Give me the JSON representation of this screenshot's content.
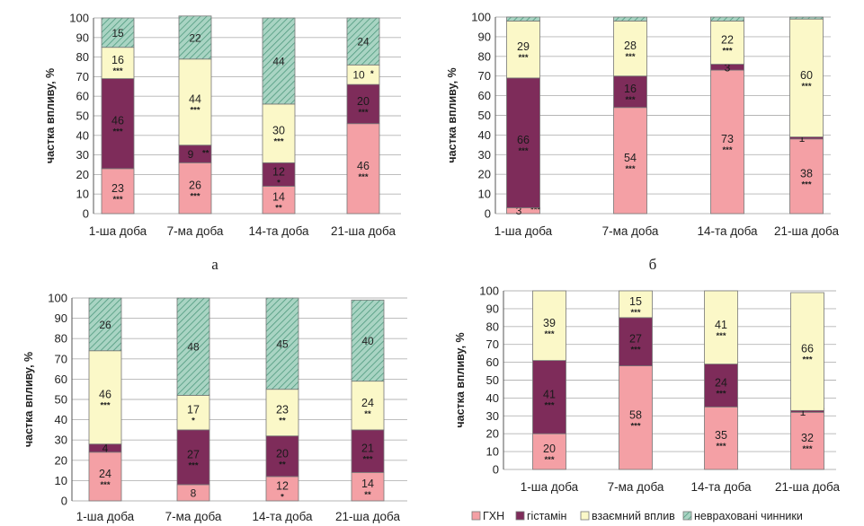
{
  "colors": {
    "ghn": "#f4a0a5",
    "histamine": "#7e2c5a",
    "interaction": "#fbf8c8",
    "unaccounted": "#a9d4c3",
    "bar_outline": "#777777",
    "grid": "#b5b5b5"
  },
  "legend": [
    {
      "key": "ghn",
      "label": "ГХН"
    },
    {
      "key": "histamine",
      "label": "гістамін"
    },
    {
      "key": "interaction",
      "label": "взаємний вплив"
    },
    {
      "key": "unaccounted",
      "label": "невраховані чинники"
    }
  ],
  "chart_data": [
    {
      "type": "bar",
      "stacked": true,
      "panel_label": "а",
      "ylabel": "частка впливу, %",
      "ylim": [
        0,
        100
      ],
      "yticks": [
        0,
        10,
        20,
        30,
        40,
        50,
        60,
        70,
        80,
        90,
        100
      ],
      "categories": [
        "1-ша доба",
        "7-ма доба",
        "14-та доба",
        "21-ша доба"
      ],
      "series": [
        {
          "key": "ghn",
          "values": [
            23,
            26,
            14,
            46
          ],
          "labels": [
            "23",
            "26",
            "14",
            "46"
          ],
          "sig": [
            "***",
            "***",
            "**",
            "***"
          ]
        },
        {
          "key": "histamine",
          "values": [
            46,
            9,
            12,
            20
          ],
          "labels": [
            "46",
            "9",
            "12",
            "20"
          ],
          "sig": [
            "***",
            "**",
            "*",
            "***"
          ]
        },
        {
          "key": "interaction",
          "values": [
            16,
            44,
            30,
            10
          ],
          "labels": [
            "16",
            "44",
            "30",
            "10"
          ],
          "sig": [
            "***",
            "***",
            "***",
            "*"
          ]
        },
        {
          "key": "unaccounted",
          "values": [
            15,
            22,
            44,
            24
          ],
          "labels": [
            "15",
            "22",
            "44",
            "24"
          ],
          "sig": [
            "",
            "",
            "",
            ""
          ]
        }
      ]
    },
    {
      "type": "bar",
      "stacked": true,
      "panel_label": "б",
      "ylabel": "частка впливу, %",
      "ylim": [
        0,
        100
      ],
      "yticks": [
        0,
        10,
        20,
        30,
        40,
        50,
        60,
        70,
        80,
        90,
        100
      ],
      "categories": [
        "1-ша доба",
        "7-ма доба",
        "14-та доба",
        "21-ша доба"
      ],
      "series": [
        {
          "key": "ghn",
          "values": [
            3,
            54,
            73,
            38
          ],
          "labels": [
            "3",
            "54",
            "73",
            "38"
          ],
          "sig": [
            "***",
            "***",
            "***",
            "***"
          ]
        },
        {
          "key": "histamine",
          "values": [
            66,
            16,
            3,
            1
          ],
          "labels": [
            "66",
            "16",
            "3",
            "1"
          ],
          "sig": [
            "***",
            "***",
            "",
            "***"
          ]
        },
        {
          "key": "interaction",
          "values": [
            29,
            28,
            22,
            60
          ],
          "labels": [
            "29",
            "28",
            "22",
            "60"
          ],
          "sig": [
            "***",
            "***",
            "***",
            "***"
          ]
        },
        {
          "key": "unaccounted",
          "values": [
            2,
            2,
            2,
            1
          ],
          "labels": [
            "",
            "",
            "",
            ""
          ],
          "sig": [
            "",
            "",
            "",
            ""
          ]
        }
      ]
    },
    {
      "type": "bar",
      "stacked": true,
      "panel_label": "",
      "ylabel": "частка впливу, %",
      "ylim": [
        0,
        100
      ],
      "yticks": [
        0,
        10,
        20,
        30,
        40,
        50,
        60,
        70,
        80,
        90,
        100
      ],
      "categories": [
        "1-ша доба",
        "7-ма доба",
        "14-та доба",
        "21-ша доба"
      ],
      "series": [
        {
          "key": "ghn",
          "values": [
            24,
            8,
            12,
            14
          ],
          "labels": [
            "24",
            "8",
            "12",
            "14"
          ],
          "sig": [
            "***",
            "",
            "*",
            "**"
          ]
        },
        {
          "key": "histamine",
          "values": [
            4,
            27,
            20,
            21
          ],
          "labels": [
            "4",
            "27",
            "20",
            "21"
          ],
          "sig": [
            "",
            "***",
            "**",
            "***"
          ]
        },
        {
          "key": "interaction",
          "values": [
            46,
            17,
            23,
            24
          ],
          "labels": [
            "46",
            "17",
            "23",
            "24"
          ],
          "sig": [
            "***",
            "*",
            "**",
            "**"
          ]
        },
        {
          "key": "unaccounted",
          "values": [
            26,
            48,
            45,
            40
          ],
          "labels": [
            "26",
            "48",
            "45",
            "40"
          ],
          "sig": [
            "",
            "",
            "",
            ""
          ]
        }
      ]
    },
    {
      "type": "bar",
      "stacked": true,
      "panel_label": "",
      "ylabel": "частка впливу, %",
      "ylim": [
        0,
        100
      ],
      "yticks": [
        0,
        10,
        20,
        30,
        40,
        50,
        60,
        70,
        80,
        90,
        100
      ],
      "categories": [
        "1-ша доба",
        "7-ма доба",
        "14-та доба",
        "21-ша доба"
      ],
      "series": [
        {
          "key": "ghn",
          "values": [
            20,
            58,
            35,
            32
          ],
          "labels": [
            "20",
            "58",
            "35",
            "32"
          ],
          "sig": [
            "***",
            "***",
            "***",
            "***"
          ]
        },
        {
          "key": "histamine",
          "values": [
            41,
            27,
            24,
            1
          ],
          "labels": [
            "41",
            "27",
            "24",
            "1"
          ],
          "sig": [
            "***",
            "***",
            "***",
            "***"
          ]
        },
        {
          "key": "interaction",
          "values": [
            39,
            15,
            41,
            66
          ],
          "labels": [
            "39",
            "15",
            "41",
            "66"
          ],
          "sig": [
            "***",
            "***",
            "***",
            "***"
          ]
        },
        {
          "key": "unaccounted",
          "values": [
            0,
            0,
            0,
            0
          ],
          "labels": [
            "",
            "",
            "",
            ""
          ],
          "sig": [
            "",
            "",
            "",
            ""
          ]
        }
      ]
    }
  ]
}
